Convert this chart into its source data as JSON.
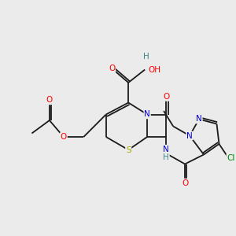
{
  "bg_color": "#EBEBEB",
  "bond_color": "#1A1A1A",
  "lw": 1.3,
  "atom_colors": {
    "S": "#AAAA00",
    "N": "#0000CC",
    "O": "#FF0000",
    "H": "#3D8585",
    "Cl": "#008800",
    "C": "#1A1A1A"
  },
  "fs": 7.0
}
